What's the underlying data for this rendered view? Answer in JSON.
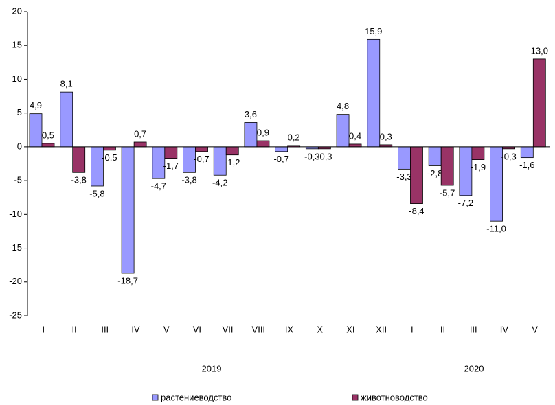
{
  "chart_data": {
    "type": "bar",
    "categories": [
      "I",
      "II",
      "III",
      "IV",
      "V",
      "VI",
      "VII",
      "VIII",
      "IX",
      "X",
      "XI",
      "XII",
      "I",
      "II",
      "III",
      "IV",
      "V"
    ],
    "group_labels": [
      "2019",
      "2020"
    ],
    "series": [
      {
        "name": "растениеводство",
        "color": "#9999ff",
        "values": [
          4.9,
          8.1,
          -5.8,
          -18.7,
          -4.7,
          -3.8,
          -4.2,
          3.6,
          -0.7,
          -0.3,
          4.8,
          15.9,
          -3.3,
          -2.8,
          -7.2,
          -11.0,
          -1.6
        ],
        "value_labels": [
          "4,9",
          "8,1",
          "-5,8",
          "-18,7",
          "-4,7",
          "-3,8",
          "-4,2",
          "3,6",
          "-0,7",
          "-0,3",
          "4,8",
          "15,9",
          "-3,3",
          "-2,8",
          "-7,2",
          "-11,0",
          "-1,6"
        ]
      },
      {
        "name": "животноводство",
        "color": "#993366",
        "values": [
          0.5,
          -3.8,
          -0.5,
          0.7,
          -1.7,
          -0.7,
          -1.2,
          0.9,
          0.2,
          -0.3,
          0.4,
          0.3,
          -8.4,
          -5.7,
          -1.9,
          -0.3,
          13.0
        ],
        "value_labels": [
          "0,5",
          "-3,8",
          "-0,5",
          "0,7",
          "-1,7",
          "-0,7",
          "-1,2",
          "0,9",
          "0,2",
          "-0,3",
          "0,4",
          "0,3",
          "-8,4",
          "-5,7",
          "-1,9",
          "-0,3",
          "13,0"
        ]
      }
    ],
    "ylim": [
      -25,
      20
    ],
    "yticks": [
      -25,
      -20,
      -15,
      -10,
      -5,
      0,
      5,
      10,
      15,
      20
    ],
    "grid": false,
    "legend": "bottom"
  }
}
